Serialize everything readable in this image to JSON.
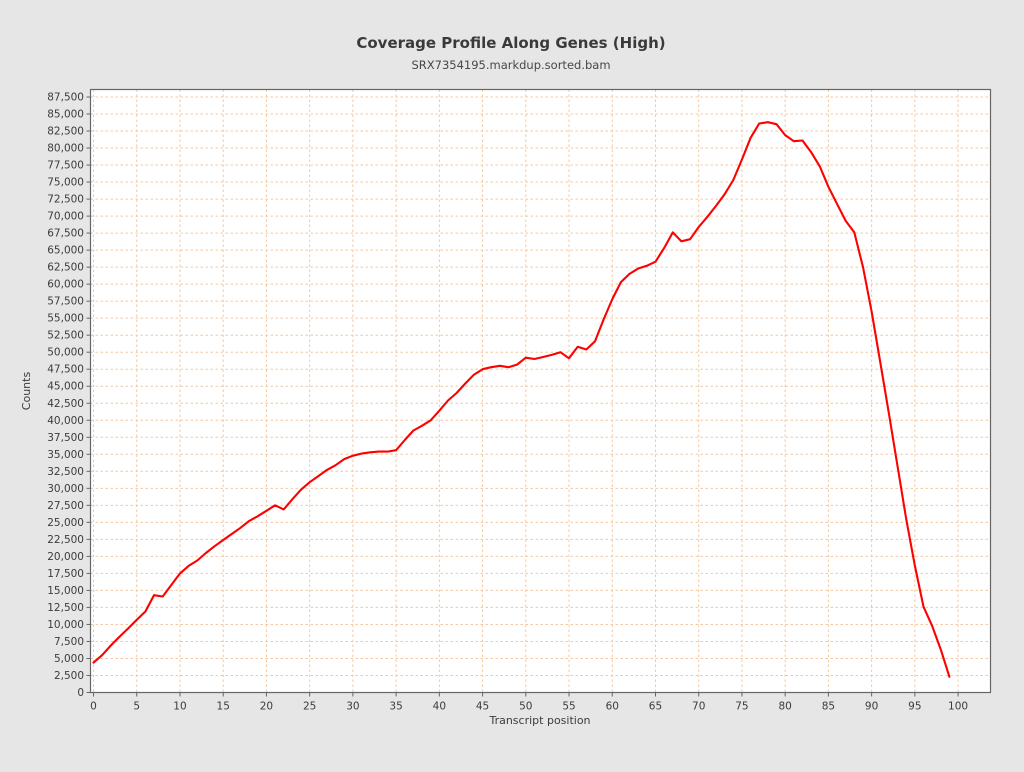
{
  "page": {
    "background_color": "#e6e6e6"
  },
  "chart_data": {
    "type": "line",
    "title": "Coverage Profile Along Genes (High)",
    "subtitle": "SRX7354195.markdup.sorted.bam",
    "xlabel": "Transcript position",
    "ylabel": "Counts",
    "xlim": [
      -0.35,
      103.75
    ],
    "ylim": [
      0,
      88600
    ],
    "x_tick_labels": [
      "0",
      "5",
      "10",
      "15",
      "20",
      "25",
      "30",
      "35",
      "40",
      "45",
      "50",
      "55",
      "60",
      "65",
      "70",
      "75",
      "80",
      "85",
      "90",
      "95",
      "100"
    ],
    "y_tick_labels": [
      "0",
      "2,500",
      "5,000",
      "7,500",
      "10,000",
      "12,500",
      "15,000",
      "17,500",
      "20,000",
      "22,500",
      "25,000",
      "27,500",
      "30,000",
      "32,500",
      "35,000",
      "37,500",
      "40,000",
      "42,500",
      "45,000",
      "47,500",
      "50,000",
      "52,500",
      "55,000",
      "57,500",
      "60,000",
      "62,500",
      "65,000",
      "67,500",
      "70,000",
      "72,500",
      "75,000",
      "77,500",
      "80,000",
      "82,500",
      "85,000",
      "87,500"
    ],
    "grid": {
      "style": "dashed",
      "color": "#f4c8a0",
      "on": true
    },
    "plot_background": "#ffffff",
    "frame_color": "#666666",
    "legend": "none",
    "series": [
      {
        "name": "SRX7354195.markdup.sorted.bam",
        "color": "#fe0000",
        "x_start": 0,
        "x_step": 1,
        "values": [
          4400,
          5500,
          6900,
          8200,
          9400,
          10700,
          11900,
          14300,
          14100,
          15800,
          17500,
          18600,
          19400,
          20500,
          21500,
          22400,
          23300,
          24200,
          25200,
          25900,
          26700,
          27500,
          26900,
          28400,
          29800,
          30900,
          31800,
          32700,
          33400,
          34300,
          34800,
          35100,
          35300,
          35400,
          35400,
          35600,
          37100,
          38500,
          39200,
          40000,
          41400,
          42900,
          44000,
          45400,
          46700,
          47500,
          47800,
          48000,
          47800,
          48200,
          49200,
          49000,
          49300,
          49600,
          50000,
          49100,
          50800,
          50400,
          51600,
          54800,
          57800,
          60300,
          61500,
          62300,
          62700,
          63300,
          65300,
          67600,
          66300,
          66600,
          68400,
          69900,
          71500,
          73200,
          75300,
          78300,
          81500,
          83600,
          83800,
          83500,
          81900,
          81000,
          81100,
          79400,
          77300,
          74300,
          71800,
          69300,
          67600,
          62500,
          56000,
          48500,
          41000,
          33200,
          25500,
          18600,
          12600,
          9800,
          6300,
          2300
        ]
      }
    ]
  }
}
